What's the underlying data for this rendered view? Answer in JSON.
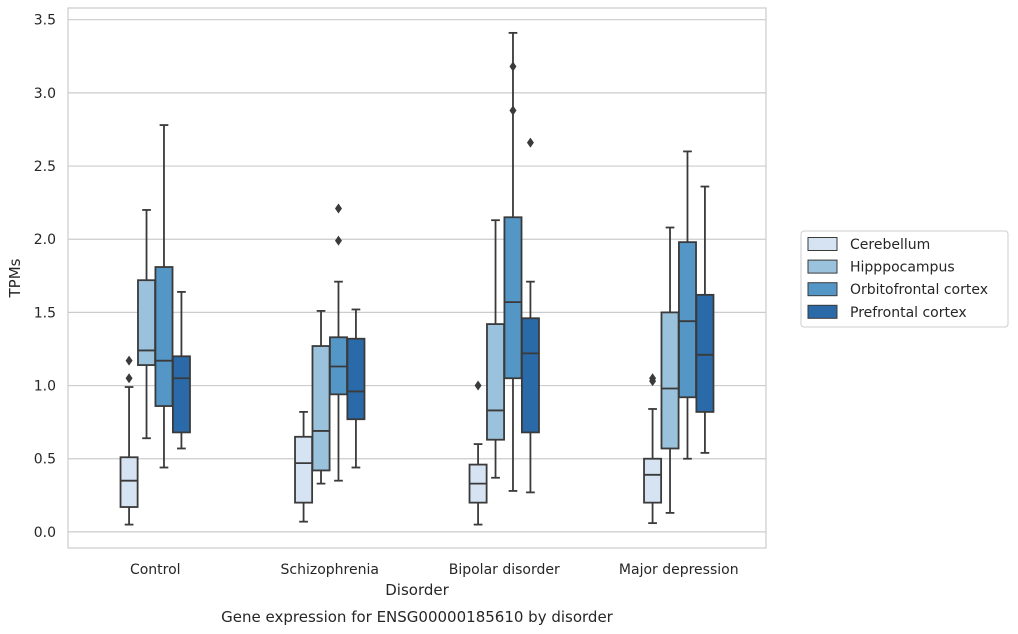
{
  "chart_data": {
    "type": "box",
    "title": "Gene expression for ENSG00000185610 by disorder",
    "xlabel": "Disorder",
    "ylabel": "TPMs",
    "ylim": [
      -0.11,
      3.58
    ],
    "yticks": [
      "0.0",
      "0.5",
      "1.0",
      "1.5",
      "2.0",
      "2.5",
      "3.0",
      "3.5"
    ],
    "grid": "horizontal",
    "legend_position": "right",
    "categories": [
      "Control",
      "Schizophrenia",
      "Bipolar disorder",
      "Major depression"
    ],
    "series": [
      {
        "name": "Cerebellum",
        "color": "#d6e3f2",
        "boxes": [
          {
            "whisker_low": 0.05,
            "q1": 0.17,
            "median": 0.35,
            "q3": 0.51,
            "whisker_high": 0.99,
            "outliers": [
              1.05,
              1.17
            ]
          },
          {
            "whisker_low": 0.07,
            "q1": 0.2,
            "median": 0.47,
            "q3": 0.65,
            "whisker_high": 0.82,
            "outliers": []
          },
          {
            "whisker_low": 0.05,
            "q1": 0.2,
            "median": 0.33,
            "q3": 0.46,
            "whisker_high": 0.6,
            "outliers": [
              1.0
            ]
          },
          {
            "whisker_low": 0.06,
            "q1": 0.2,
            "median": 0.39,
            "q3": 0.5,
            "whisker_high": 0.84,
            "outliers": [
              1.03,
              1.05
            ]
          }
        ]
      },
      {
        "name": "Hipppocampus",
        "color": "#9ac2dc",
        "boxes": [
          {
            "whisker_low": 0.64,
            "q1": 1.14,
            "median": 1.24,
            "q3": 1.72,
            "whisker_high": 2.2,
            "outliers": []
          },
          {
            "whisker_low": 0.33,
            "q1": 0.42,
            "median": 0.69,
            "q3": 1.27,
            "whisker_high": 1.51,
            "outliers": []
          },
          {
            "whisker_low": 0.37,
            "q1": 0.63,
            "median": 0.83,
            "q3": 1.42,
            "whisker_high": 2.13,
            "outliers": []
          },
          {
            "whisker_low": 0.13,
            "q1": 0.57,
            "median": 0.98,
            "q3": 1.5,
            "whisker_high": 2.08,
            "outliers": []
          }
        ]
      },
      {
        "name": "Orbitofrontal cortex",
        "color": "#5497c7",
        "boxes": [
          {
            "whisker_low": 0.44,
            "q1": 0.86,
            "median": 1.17,
            "q3": 1.81,
            "whisker_high": 2.78,
            "outliers": []
          },
          {
            "whisker_low": 0.35,
            "q1": 0.94,
            "median": 1.13,
            "q3": 1.33,
            "whisker_high": 1.71,
            "outliers": [
              1.99,
              2.21
            ]
          },
          {
            "whisker_low": 0.28,
            "q1": 1.05,
            "median": 1.57,
            "q3": 2.15,
            "whisker_high": 3.41,
            "outliers": [
              2.88,
              3.18
            ]
          },
          {
            "whisker_low": 0.5,
            "q1": 0.92,
            "median": 1.44,
            "q3": 1.98,
            "whisker_high": 2.6,
            "outliers": []
          }
        ]
      },
      {
        "name": "Prefrontal cortex",
        "color": "#2a6aa8",
        "boxes": [
          {
            "whisker_low": 0.57,
            "q1": 0.68,
            "median": 1.05,
            "q3": 1.2,
            "whisker_high": 1.64,
            "outliers": []
          },
          {
            "whisker_low": 0.44,
            "q1": 0.77,
            "median": 0.96,
            "q3": 1.32,
            "whisker_high": 1.52,
            "outliers": []
          },
          {
            "whisker_low": 0.27,
            "q1": 0.68,
            "median": 1.22,
            "q3": 1.46,
            "whisker_high": 1.71,
            "outliers": [
              2.66
            ]
          },
          {
            "whisker_low": 0.54,
            "q1": 0.82,
            "median": 1.21,
            "q3": 1.62,
            "whisker_high": 2.36,
            "outliers": []
          }
        ]
      }
    ]
  }
}
